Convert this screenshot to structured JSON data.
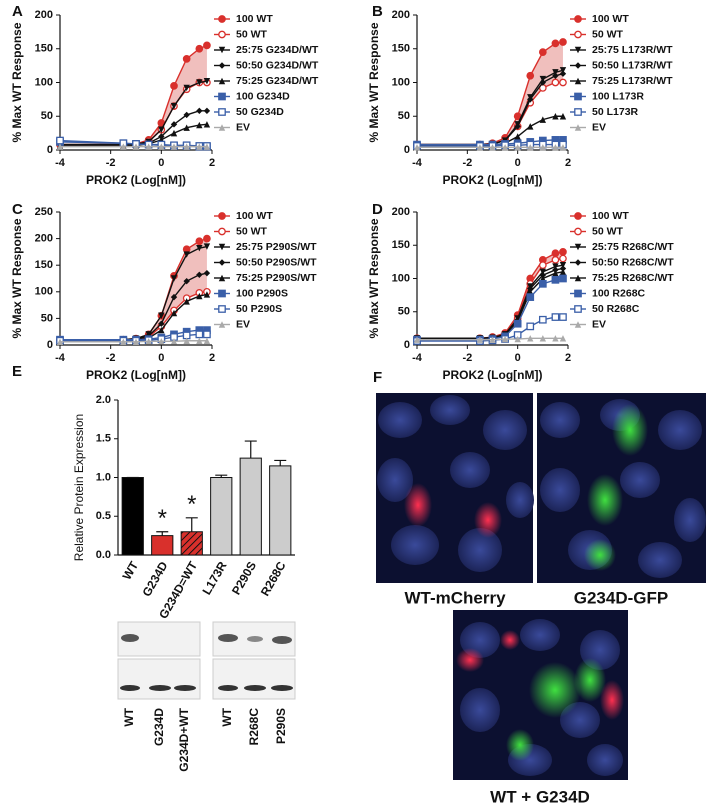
{
  "chart_data": [
    {
      "type": "line",
      "panel_label": "A",
      "xlabel": "PROK2 (Log[nM])",
      "ylabel": "% Max WT Response",
      "xlim": [
        -4,
        2
      ],
      "xticks": [
        -4,
        -2,
        0,
        2
      ],
      "ylim": [
        0,
        200
      ],
      "yticks": [
        0,
        50,
        100,
        150,
        200
      ],
      "shade_color": "#e48a87",
      "x": [
        -4,
        -1.5,
        -1,
        -0.5,
        0,
        0.5,
        1,
        1.5,
        1.8
      ],
      "series": [
        {
          "name": "100 WT",
          "color": "#d9302c",
          "marker": "circle",
          "values": [
            8,
            8,
            9,
            15,
            40,
            95,
            135,
            150,
            155
          ]
        },
        {
          "name": "50 WT",
          "color": "#d9302c",
          "marker": "circle-open",
          "values": [
            8,
            8,
            9,
            13,
            30,
            65,
            90,
            100,
            100
          ]
        },
        {
          "name": "25:75 G234D/WT",
          "color": "#111111",
          "marker": "triangle-down",
          "values": [
            8,
            8,
            9,
            12,
            30,
            65,
            92,
            100,
            102
          ]
        },
        {
          "name": "50:50 G234D/WT",
          "color": "#111111",
          "marker": "diamond",
          "values": [
            8,
            8,
            8,
            10,
            20,
            38,
            52,
            58,
            58
          ]
        },
        {
          "name": "75:25 G234D/WT",
          "color": "#111111",
          "marker": "triangle",
          "values": [
            6,
            6,
            7,
            9,
            15,
            25,
            33,
            37,
            38
          ]
        },
        {
          "name": "100 G234D",
          "color": "#3a5fa8",
          "marker": "square",
          "values": [
            12,
            10,
            9,
            8,
            7,
            6,
            6,
            5,
            5
          ]
        },
        {
          "name": "50 G234D",
          "color": "#3a5fa8",
          "marker": "square-open",
          "values": [
            14,
            10,
            9,
            8,
            8,
            7,
            7,
            6,
            6
          ]
        },
        {
          "name": "EV",
          "color": "#aaaaaa",
          "marker": "triangle",
          "values": [
            5,
            5,
            5,
            5,
            5,
            5,
            5,
            5,
            5
          ]
        }
      ]
    },
    {
      "type": "line",
      "panel_label": "B",
      "xlabel": "PROK2 (Log[nM])",
      "ylabel": "% Max WT Response",
      "xlim": [
        -4,
        2
      ],
      "xticks": [
        -4,
        -2,
        0,
        2
      ],
      "ylim": [
        0,
        200
      ],
      "yticks": [
        0,
        50,
        100,
        150,
        200
      ],
      "shade_color": "#e48a87",
      "x": [
        -4,
        -1.5,
        -1,
        -0.5,
        0,
        0.5,
        1,
        1.5,
        1.8
      ],
      "series": [
        {
          "name": "100 WT",
          "color": "#d9302c",
          "marker": "circle",
          "values": [
            8,
            8,
            10,
            18,
            50,
            110,
            145,
            158,
            160
          ]
        },
        {
          "name": "50 WT",
          "color": "#d9302c",
          "marker": "circle-open",
          "values": [
            8,
            8,
            9,
            15,
            35,
            70,
            92,
            100,
            100
          ]
        },
        {
          "name": "25:75 L173R/WT",
          "color": "#111111",
          "marker": "triangle-down",
          "values": [
            8,
            8,
            9,
            14,
            38,
            78,
            105,
            115,
            118
          ]
        },
        {
          "name": "50:50 L173R/WT",
          "color": "#111111",
          "marker": "diamond",
          "values": [
            8,
            8,
            9,
            14,
            35,
            75,
            100,
            110,
            113
          ]
        },
        {
          "name": "75:25 L173R/WT",
          "color": "#111111",
          "marker": "triangle",
          "values": [
            6,
            6,
            7,
            10,
            20,
            35,
            45,
            50,
            50
          ]
        },
        {
          "name": "100 L173R",
          "color": "#3a5fa8",
          "marker": "square",
          "values": [
            8,
            8,
            8,
            9,
            10,
            12,
            14,
            15,
            15
          ]
        },
        {
          "name": "50 L173R",
          "color": "#3a5fa8",
          "marker": "square-open",
          "values": [
            6,
            6,
            6,
            7,
            7,
            8,
            8,
            8,
            8
          ]
        },
        {
          "name": "EV",
          "color": "#aaaaaa",
          "marker": "triangle",
          "values": [
            4,
            4,
            4,
            4,
            4,
            4,
            4,
            4,
            4
          ]
        }
      ]
    },
    {
      "type": "line",
      "panel_label": "C",
      "xlabel": "PROK2 (Log[nM])",
      "ylabel": "% Max WT Response",
      "xlim": [
        -4,
        2
      ],
      "xticks": [
        -4,
        -2,
        0,
        2
      ],
      "ylim": [
        0,
        250
      ],
      "yticks": [
        0,
        50,
        100,
        150,
        200,
        250
      ],
      "shade_color": "#e48a87",
      "x": [
        -4,
        -1.5,
        -1,
        -0.5,
        0,
        0.5,
        1,
        1.5,
        1.8
      ],
      "series": [
        {
          "name": "100 WT",
          "color": "#d9302c",
          "marker": "circle",
          "values": [
            10,
            10,
            12,
            20,
            55,
            130,
            180,
            195,
            200
          ]
        },
        {
          "name": "50 WT",
          "color": "#d9302c",
          "marker": "circle-open",
          "values": [
            10,
            10,
            11,
            15,
            35,
            65,
            88,
            98,
            100
          ]
        },
        {
          "name": "25:75 P290S/WT",
          "color": "#111111",
          "marker": "triangle-down",
          "values": [
            10,
            10,
            12,
            20,
            55,
            125,
            170,
            182,
            185
          ]
        },
        {
          "name": "50:50 P290S/WT",
          "color": "#111111",
          "marker": "diamond",
          "values": [
            10,
            10,
            11,
            17,
            40,
            90,
            120,
            132,
            135
          ]
        },
        {
          "name": "75:25 P290S/WT",
          "color": "#111111",
          "marker": "triangle",
          "values": [
            8,
            8,
            9,
            13,
            28,
            60,
            82,
            92,
            95
          ]
        },
        {
          "name": "100 P290S",
          "color": "#3a5fa8",
          "marker": "square",
          "values": [
            10,
            10,
            10,
            11,
            14,
            20,
            25,
            28,
            28
          ]
        },
        {
          "name": "50 P290S",
          "color": "#3a5fa8",
          "marker": "square-open",
          "values": [
            8,
            8,
            8,
            9,
            11,
            15,
            18,
            20,
            20
          ]
        },
        {
          "name": "EV",
          "color": "#aaaaaa",
          "marker": "triangle",
          "values": [
            6,
            6,
            6,
            7,
            7,
            7,
            8,
            8,
            8
          ]
        }
      ]
    },
    {
      "type": "line",
      "panel_label": "D",
      "xlabel": "PROK2 (Log[nM])",
      "ylabel": "% Max WT Response",
      "xlim": [
        -4,
        2
      ],
      "xticks": [
        -4,
        -2,
        0,
        2
      ],
      "ylim": [
        0,
        200
      ],
      "yticks": [
        0,
        50,
        100,
        150,
        200
      ],
      "shade_color": "#e48a87",
      "x": [
        -4,
        -1.5,
        -1,
        -0.5,
        0,
        0.5,
        1,
        1.5,
        1.8
      ],
      "series": [
        {
          "name": "100 WT",
          "color": "#d9302c",
          "marker": "circle",
          "values": [
            10,
            10,
            12,
            18,
            45,
            100,
            128,
            138,
            140
          ]
        },
        {
          "name": "50 WT",
          "color": "#d9302c",
          "marker": "circle-open",
          "values": [
            10,
            10,
            11,
            16,
            40,
            92,
            120,
            128,
            130
          ]
        },
        {
          "name": "25:75 R268C/WT",
          "color": "#111111",
          "marker": "triangle-down",
          "values": [
            10,
            10,
            11,
            16,
            40,
            88,
            110,
            118,
            120
          ]
        },
        {
          "name": "50:50 R268C/WT",
          "color": "#111111",
          "marker": "diamond",
          "values": [
            10,
            10,
            11,
            15,
            38,
            85,
            105,
            113,
            115
          ]
        },
        {
          "name": "75:25 R268C/WT",
          "color": "#111111",
          "marker": "triangle",
          "values": [
            10,
            10,
            11,
            15,
            36,
            80,
            100,
            108,
            110
          ]
        },
        {
          "name": "100 R268C",
          "color": "#3a5fa8",
          "marker": "square",
          "values": [
            8,
            8,
            9,
            13,
            32,
            72,
            92,
            98,
            100
          ]
        },
        {
          "name": "50 R268C",
          "color": "#3a5fa8",
          "marker": "square-open",
          "values": [
            6,
            6,
            7,
            9,
            15,
            28,
            38,
            42,
            42
          ]
        },
        {
          "name": "EV",
          "color": "#aaaaaa",
          "marker": "triangle",
          "values": [
            8,
            8,
            8,
            9,
            9,
            10,
            10,
            10,
            10
          ]
        }
      ]
    },
    {
      "type": "bar",
      "panel_label": "E",
      "ylabel": "Relative  Protein Expression",
      "categories": [
        "WT",
        "G234D",
        "G234D=WT",
        "L173R",
        "P290S",
        "R268C"
      ],
      "values": [
        1.0,
        0.25,
        0.3,
        1.0,
        1.25,
        1.15
      ],
      "errors": [
        0,
        0.05,
        0.18,
        0.03,
        0.22,
        0.07
      ],
      "colors": [
        "#000000",
        "#d9302c",
        "#d9302c",
        "#cccccc",
        "#cccccc",
        "#cccccc"
      ],
      "hatched": [
        false,
        false,
        true,
        false,
        false,
        false
      ],
      "ylim": [
        0,
        2
      ],
      "yticks": [
        {
          "value": 0,
          "label": "0.0"
        },
        {
          "value": 0.5,
          "label": "0.5"
        },
        {
          "value": 1,
          "label": "1.0"
        },
        {
          "value": 1.5,
          "label": "1.5"
        },
        {
          "value": 2,
          "label": "2.0"
        }
      ],
      "annotations": [
        {
          "category": "G234D",
          "text": "*"
        },
        {
          "category": "G234D=WT",
          "text": "*"
        }
      ]
    }
  ],
  "blot": {
    "lanes_left": [
      "WT",
      "G234D",
      "G234D+WT"
    ],
    "lanes_right": [
      "WT",
      "R268C",
      "P290S"
    ]
  },
  "micrographs": {
    "panel_label": "F",
    "captions": [
      "WT-mCherry",
      "G234D-GFP",
      "WT + G234D"
    ]
  }
}
